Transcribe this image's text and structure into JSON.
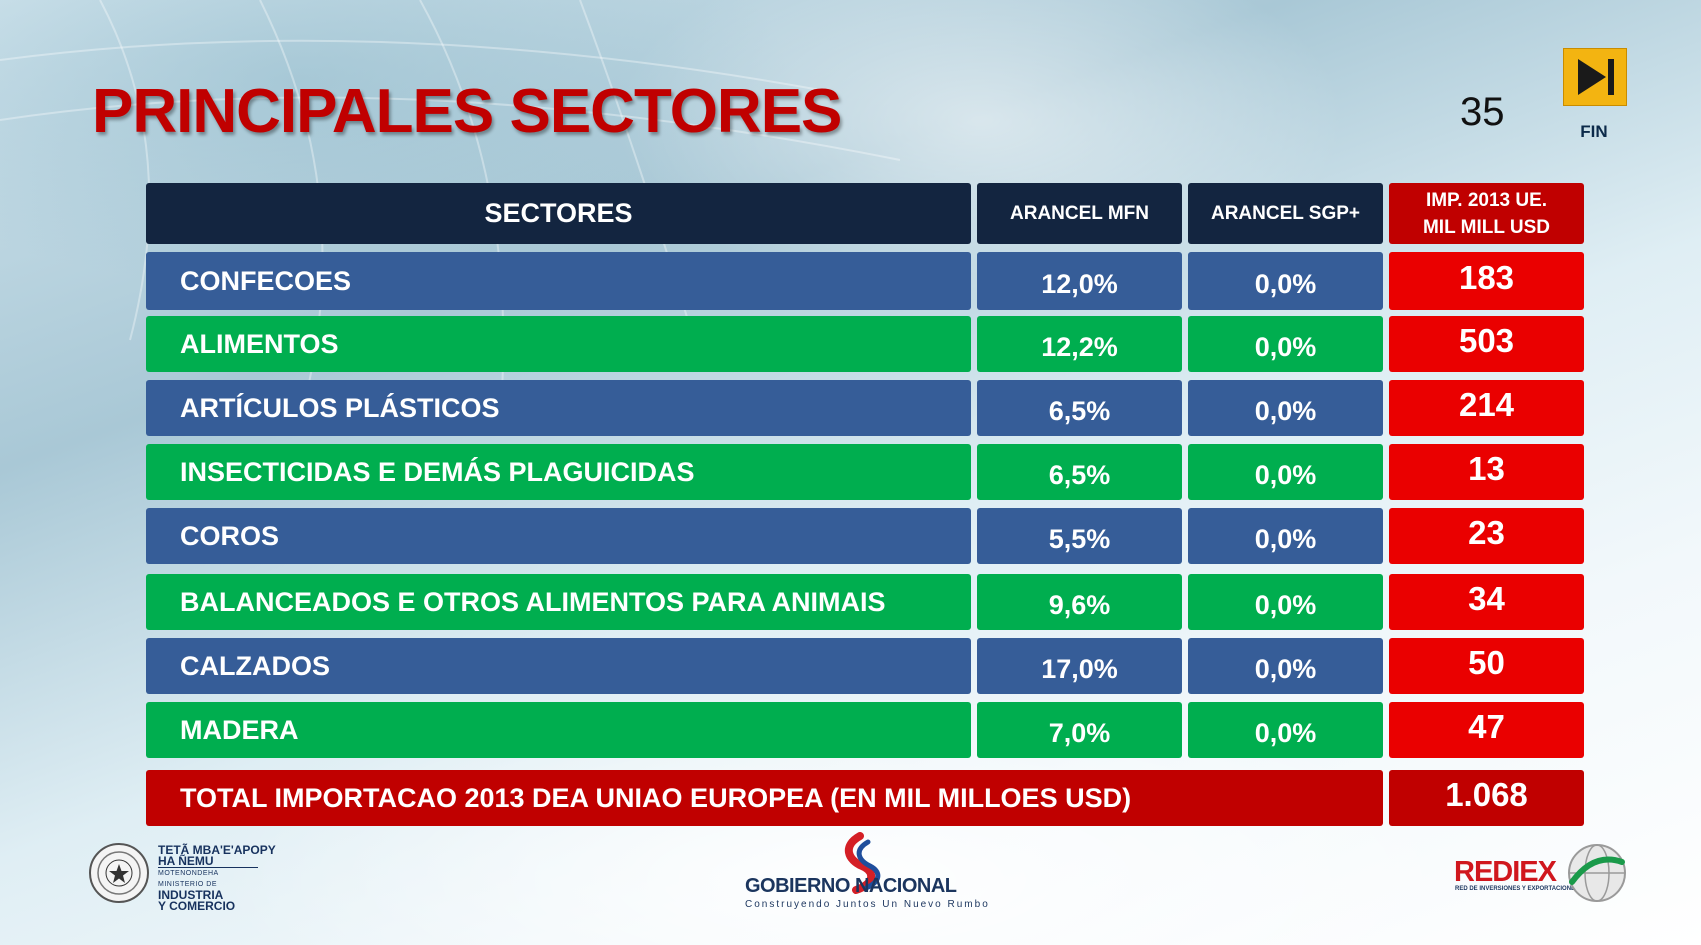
{
  "title": "PRINCIPALES SECTORES",
  "page_number": "35",
  "nav": {
    "fin_label": "FIN",
    "fin_icon": "skip-to-end-icon"
  },
  "colors": {
    "title": "#c00000",
    "header": "#132540",
    "blue_row": "#365d98",
    "green_row": "#00ae4f",
    "import_cell": "#ea0000",
    "total": "#c00000",
    "fin_button": "#f3b411"
  },
  "table": {
    "headers": {
      "sector": "SECTORES",
      "mfn": "ARANCEL MFN",
      "sgp": "ARANCEL SGP+",
      "imp_line1": "IMP. 2013 UE.",
      "imp_line2": "MIL MILL USD"
    },
    "rows": [
      {
        "sector": "CONFECOES",
        "mfn": "12,0%",
        "sgp": "0,0%",
        "imp": "183",
        "color": "blue"
      },
      {
        "sector": "ALIMENTOS",
        "mfn": "12,2%",
        "sgp": "0,0%",
        "imp": "503",
        "color": "green"
      },
      {
        "sector": "ARTÍCULOS PLÁSTICOS",
        "mfn": "6,5%",
        "sgp": "0,0%",
        "imp": "214",
        "color": "blue"
      },
      {
        "sector": "INSECTICIDAS E DEMÁS PLAGUICIDAS",
        "mfn": "6,5%",
        "sgp": "0,0%",
        "imp": "13",
        "color": "green"
      },
      {
        "sector": "COROS",
        "mfn": "5,5%",
        "sgp": "0,0%",
        "imp": "23",
        "color": "blue"
      },
      {
        "sector": "BALANCEADOS E OTROS ALIMENTOS PARA ANIMAIS",
        "mfn": "9,6%",
        "sgp": "0,0%",
        "imp": "34",
        "color": "green"
      },
      {
        "sector": "CALZADOS",
        "mfn": "17,0%",
        "sgp": "0,0%",
        "imp": "50",
        "color": "blue"
      },
      {
        "sector": "MADERA",
        "mfn": "7,0%",
        "sgp": "0,0%",
        "imp": "47",
        "color": "green"
      }
    ],
    "total_label": "TOTAL IMPORTACAO 2013 DEA UNIAO EUROPEA (EN MIL MILLOES USD)",
    "total_value": "1.068"
  },
  "footer": {
    "ministry_line1": "TETÃ MBA'E'APOPY",
    "ministry_line2": "HA ÑEMU",
    "ministry_line3": "MOTENONDEHA",
    "ministry_line4": "MINISTERIO DE",
    "ministry_line5": "INDUSTRIA",
    "ministry_line6": "Y COMERCIO",
    "gob_title": "GOBIERNO NACIONAL",
    "gob_subtitle": "Construyendo Juntos Un Nuevo Rumbo",
    "rediex_title": "REDIEX",
    "rediex_subtitle": "RED DE INVERSIONES Y EXPORTACIONES"
  }
}
